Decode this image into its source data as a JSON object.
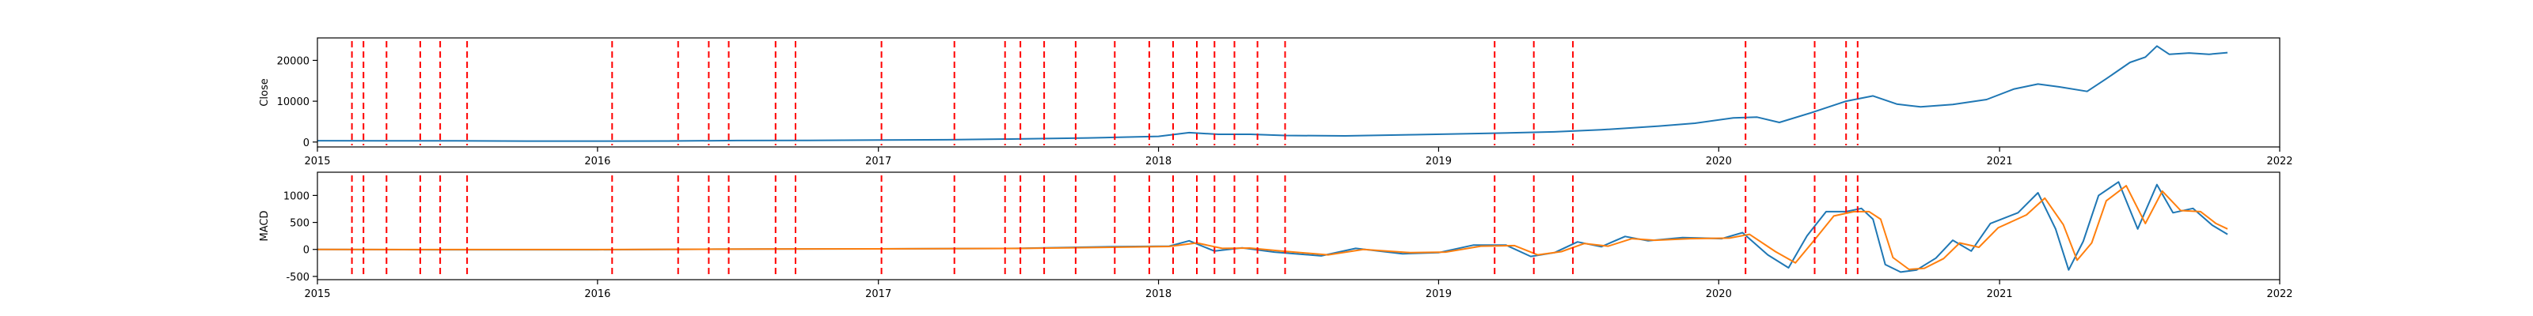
{
  "chart_data": [
    {
      "type": "line",
      "ylabel": "Close",
      "xlim": [
        "2015-01-01",
        "2022-01-01"
      ],
      "ylim": [
        -1200,
        25500
      ],
      "x_ticks": [
        "2015",
        "2016",
        "2017",
        "2018",
        "2019",
        "2020",
        "2021",
        "2022"
      ],
      "y_ticks": [
        0,
        10000,
        20000
      ],
      "grid": false,
      "series": [
        {
          "color": "#1f77b4",
          "points": [
            [
              "2015-01-01",
              320
            ],
            [
              "2015-04-01",
              300
            ],
            [
              "2015-07-01",
              290
            ],
            [
              "2015-10-01",
              240
            ],
            [
              "2016-01-01",
              230
            ],
            [
              "2016-04-01",
              250
            ],
            [
              "2016-07-01",
              360
            ],
            [
              "2016-10-01",
              390
            ],
            [
              "2017-01-01",
              480
            ],
            [
              "2017-04-01",
              560
            ],
            [
              "2017-07-01",
              750
            ],
            [
              "2017-10-01",
              1000
            ],
            [
              "2018-01-01",
              1400
            ],
            [
              "2018-02-10",
              2300
            ],
            [
              "2018-03-20",
              1900
            ],
            [
              "2018-05-01",
              1900
            ],
            [
              "2018-06-15",
              1600
            ],
            [
              "2018-09-01",
              1500
            ],
            [
              "2018-12-01",
              1800
            ],
            [
              "2019-03-01",
              2100
            ],
            [
              "2019-06-01",
              2500
            ],
            [
              "2019-08-01",
              3000
            ],
            [
              "2019-10-15",
              3900
            ],
            [
              "2019-12-01",
              4600
            ],
            [
              "2020-01-20",
              5900
            ],
            [
              "2020-02-20",
              6100
            ],
            [
              "2020-03-20",
              4800
            ],
            [
              "2020-05-01",
              7200
            ],
            [
              "2020-06-15",
              10000
            ],
            [
              "2020-07-20",
              11300
            ],
            [
              "2020-08-20",
              9300
            ],
            [
              "2020-09-20",
              8600
            ],
            [
              "2020-11-01",
              9200
            ],
            [
              "2020-12-15",
              10400
            ],
            [
              "2021-01-20",
              13000
            ],
            [
              "2021-02-20",
              14200
            ],
            [
              "2021-03-20",
              13500
            ],
            [
              "2021-04-25",
              12400
            ],
            [
              "2021-05-20",
              15500
            ],
            [
              "2021-06-20",
              19500
            ],
            [
              "2021-07-10",
              20800
            ],
            [
              "2021-07-25",
              23500
            ],
            [
              "2021-08-10",
              21500
            ],
            [
              "2021-09-05",
              21800
            ],
            [
              "2021-10-01",
              21500
            ],
            [
              "2021-10-25",
              21900
            ]
          ]
        }
      ],
      "vlines": [
        "2015-02-15",
        "2015-03-02",
        "2015-04-01",
        "2015-05-15",
        "2015-06-10",
        "2015-07-15",
        "2016-01-20",
        "2016-04-15",
        "2016-05-25",
        "2016-06-20",
        "2016-08-20",
        "2016-09-15",
        "2017-01-05",
        "2017-04-10",
        "2017-06-15",
        "2017-07-05",
        "2017-08-05",
        "2017-09-15",
        "2017-11-05",
        "2017-12-20",
        "2018-01-20",
        "2018-02-20",
        "2018-03-15",
        "2018-04-10",
        "2018-05-10",
        "2018-06-15",
        "2019-03-15",
        "2019-05-05",
        "2019-06-25",
        "2020-02-05",
        "2020-05-05",
        "2020-06-15",
        "2020-06-30"
      ]
    },
    {
      "type": "line",
      "ylabel": "MACD",
      "xlim": [
        "2015-01-01",
        "2022-01-01"
      ],
      "ylim": [
        -560,
        1430
      ],
      "x_ticks": [
        "2015",
        "2016",
        "2017",
        "2018",
        "2019",
        "2020",
        "2021",
        "2022"
      ],
      "y_ticks": [
        -500,
        0,
        500,
        1000
      ],
      "grid": false,
      "series": [
        {
          "color": "#1f77b4",
          "points": [
            [
              "2015-01-01",
              0
            ],
            [
              "2015-06-01",
              -5
            ],
            [
              "2016-01-01",
              -5
            ],
            [
              "2016-06-01",
              5
            ],
            [
              "2017-01-01",
              10
            ],
            [
              "2017-07-01",
              20
            ],
            [
              "2017-11-01",
              50
            ],
            [
              "2018-01-15",
              60
            ],
            [
              "2018-02-10",
              160
            ],
            [
              "2018-03-15",
              -30
            ],
            [
              "2018-04-20",
              30
            ],
            [
              "2018-06-01",
              -50
            ],
            [
              "2018-08-01",
              -120
            ],
            [
              "2018-09-15",
              20
            ],
            [
              "2018-11-15",
              -80
            ],
            [
              "2019-01-01",
              -60
            ],
            [
              "2019-02-15",
              80
            ],
            [
              "2019-03-30",
              80
            ],
            [
              "2019-05-01",
              -130
            ],
            [
              "2019-06-01",
              -60
            ],
            [
              "2019-07-01",
              140
            ],
            [
              "2019-08-01",
              50
            ],
            [
              "2019-09-01",
              240
            ],
            [
              "2019-10-01",
              160
            ],
            [
              "2019-11-15",
              220
            ],
            [
              "2020-01-05",
              200
            ],
            [
              "2020-02-01",
              310
            ],
            [
              "2020-03-05",
              -100
            ],
            [
              "2020-04-01",
              -340
            ],
            [
              "2020-04-25",
              250
            ],
            [
              "2020-05-20",
              700
            ],
            [
              "2020-06-15",
              700
            ],
            [
              "2020-07-05",
              760
            ],
            [
              "2020-07-20",
              560
            ],
            [
              "2020-08-05",
              -280
            ],
            [
              "2020-08-25",
              -420
            ],
            [
              "2020-09-15",
              -380
            ],
            [
              "2020-10-10",
              -160
            ],
            [
              "2020-11-01",
              170
            ],
            [
              "2020-11-25",
              -30
            ],
            [
              "2020-12-20",
              480
            ],
            [
              "2021-01-25",
              680
            ],
            [
              "2021-02-20",
              1050
            ],
            [
              "2021-03-15",
              380
            ],
            [
              "2021-04-01",
              -380
            ],
            [
              "2021-04-20",
              150
            ],
            [
              "2021-05-10",
              1000
            ],
            [
              "2021-06-05",
              1250
            ],
            [
              "2021-06-30",
              380
            ],
            [
              "2021-07-25",
              1200
            ],
            [
              "2021-08-15",
              680
            ],
            [
              "2021-09-10",
              760
            ],
            [
              "2021-10-05",
              450
            ],
            [
              "2021-10-25",
              280
            ]
          ]
        },
        {
          "color": "#ff7f0e",
          "points": [
            [
              "2015-01-01",
              0
            ],
            [
              "2015-06-01",
              -3
            ],
            [
              "2016-01-01",
              -3
            ],
            [
              "2016-06-01",
              5
            ],
            [
              "2017-01-01",
              10
            ],
            [
              "2017-07-01",
              18
            ],
            [
              "2017-11-01",
              40
            ],
            [
              "2018-01-15",
              55
            ],
            [
              "2018-02-20",
              120
            ],
            [
              "2018-03-25",
              20
            ],
            [
              "2018-04-30",
              25
            ],
            [
              "2018-06-10",
              -30
            ],
            [
              "2018-08-10",
              -100
            ],
            [
              "2018-09-25",
              0
            ],
            [
              "2018-11-25",
              -60
            ],
            [
              "2019-01-10",
              -50
            ],
            [
              "2019-02-25",
              60
            ],
            [
              "2019-04-10",
              70
            ],
            [
              "2019-05-10",
              -100
            ],
            [
              "2019-06-10",
              -40
            ],
            [
              "2019-07-10",
              110
            ],
            [
              "2019-08-10",
              60
            ],
            [
              "2019-09-10",
              200
            ],
            [
              "2019-10-10",
              170
            ],
            [
              "2019-11-25",
              200
            ],
            [
              "2020-01-15",
              210
            ],
            [
              "2020-02-10",
              280
            ],
            [
              "2020-03-15",
              -40
            ],
            [
              "2020-04-10",
              -250
            ],
            [
              "2020-05-05",
              180
            ],
            [
              "2020-05-30",
              620
            ],
            [
              "2020-06-25",
              700
            ],
            [
              "2020-07-15",
              700
            ],
            [
              "2020-07-30",
              560
            ],
            [
              "2020-08-15",
              -150
            ],
            [
              "2020-09-05",
              -370
            ],
            [
              "2020-09-25",
              -350
            ],
            [
              "2020-10-20",
              -170
            ],
            [
              "2020-11-10",
              120
            ],
            [
              "2020-12-05",
              40
            ],
            [
              "2020-12-30",
              400
            ],
            [
              "2021-02-05",
              640
            ],
            [
              "2021-03-01",
              950
            ],
            [
              "2021-03-25",
              460
            ],
            [
              "2021-04-12",
              -200
            ],
            [
              "2021-05-01",
              120
            ],
            [
              "2021-05-20",
              900
            ],
            [
              "2021-06-15",
              1180
            ],
            [
              "2021-07-10",
              480
            ],
            [
              "2021-08-01",
              1080
            ],
            [
              "2021-08-25",
              720
            ],
            [
              "2021-09-20",
              700
            ],
            [
              "2021-10-10",
              480
            ],
            [
              "2021-10-25",
              380
            ]
          ]
        }
      ],
      "vlines": [
        "2015-02-15",
        "2015-03-02",
        "2015-04-01",
        "2015-05-15",
        "2015-06-10",
        "2015-07-15",
        "2016-01-20",
        "2016-04-15",
        "2016-05-25",
        "2016-06-20",
        "2016-08-20",
        "2016-09-15",
        "2017-01-05",
        "2017-04-10",
        "2017-06-15",
        "2017-07-05",
        "2017-08-05",
        "2017-09-15",
        "2017-11-05",
        "2017-12-20",
        "2018-01-20",
        "2018-02-20",
        "2018-03-15",
        "2018-04-10",
        "2018-05-10",
        "2018-06-15",
        "2019-03-15",
        "2019-05-05",
        "2019-06-25",
        "2020-02-05",
        "2020-05-05",
        "2020-06-15",
        "2020-06-30"
      ]
    }
  ]
}
